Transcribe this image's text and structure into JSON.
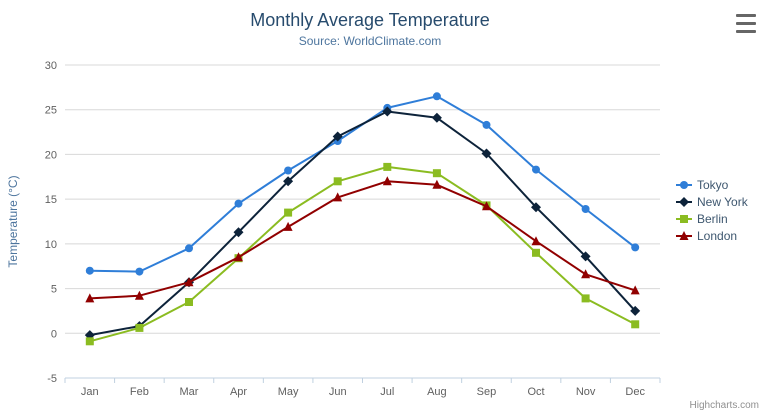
{
  "chart": {
    "credit_label": "Highcharts.com"
  },
  "icons": {
    "export_menu": "hamburger-icon"
  },
  "chart_data": {
    "type": "line",
    "title": "Monthly Average Temperature",
    "subtitle": "Source: WorldClimate.com",
    "categories": [
      "Jan",
      "Feb",
      "Mar",
      "Apr",
      "May",
      "Jun",
      "Jul",
      "Aug",
      "Sep",
      "Oct",
      "Nov",
      "Dec"
    ],
    "xlabel": "",
    "ylabel": "Temperature (°C)",
    "ylim": [
      -5,
      30
    ],
    "ytick_step": 5,
    "grid": true,
    "legend_position": "right",
    "series": [
      {
        "name": "Tokyo",
        "color": "#2f7ed8",
        "marker": "circle",
        "values": [
          7.0,
          6.9,
          9.5,
          14.5,
          18.2,
          21.5,
          25.2,
          26.5,
          23.3,
          18.3,
          13.9,
          9.6
        ]
      },
      {
        "name": "New York",
        "color": "#0d233a",
        "marker": "diamond",
        "values": [
          -0.2,
          0.8,
          5.7,
          11.3,
          17.0,
          22.0,
          24.8,
          24.1,
          20.1,
          14.1,
          8.6,
          2.5
        ]
      },
      {
        "name": "Berlin",
        "color": "#8bbc21",
        "marker": "square",
        "values": [
          -0.9,
          0.6,
          3.5,
          8.4,
          13.5,
          17.0,
          18.6,
          17.9,
          14.3,
          9.0,
          3.9,
          1.0
        ]
      },
      {
        "name": "London",
        "color": "#910000",
        "marker": "triangle",
        "values": [
          3.9,
          4.2,
          5.7,
          8.5,
          11.9,
          15.2,
          17.0,
          16.6,
          14.2,
          10.3,
          6.6,
          4.8
        ]
      }
    ]
  }
}
